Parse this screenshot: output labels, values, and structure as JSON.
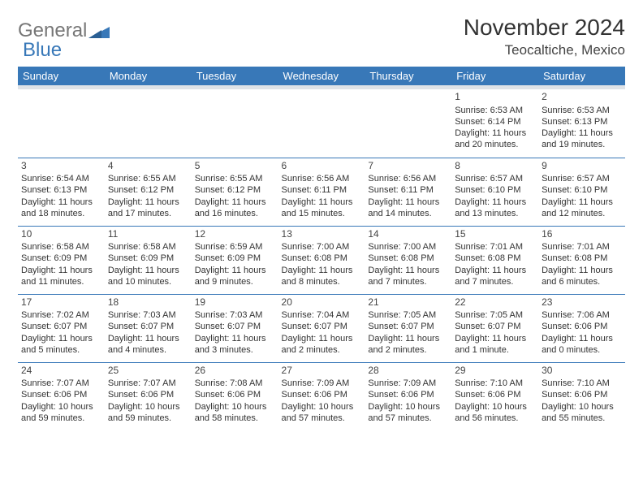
{
  "brand": {
    "part1": "General",
    "part2": "Blue"
  },
  "title": "November 2024",
  "location": "Teocaltiche, Mexico",
  "colors": {
    "header_bg": "#3878b8",
    "header_fg": "#ffffff",
    "rule": "#3878b8",
    "seprow": "#dfe3e7"
  },
  "weekdays": [
    "Sunday",
    "Monday",
    "Tuesday",
    "Wednesday",
    "Thursday",
    "Friday",
    "Saturday"
  ],
  "weeks": [
    [
      null,
      null,
      null,
      null,
      null,
      {
        "n": "1",
        "sr": "Sunrise: 6:53 AM",
        "ss": "Sunset: 6:14 PM",
        "d1": "Daylight: 11 hours",
        "d2": "and 20 minutes."
      },
      {
        "n": "2",
        "sr": "Sunrise: 6:53 AM",
        "ss": "Sunset: 6:13 PM",
        "d1": "Daylight: 11 hours",
        "d2": "and 19 minutes."
      }
    ],
    [
      {
        "n": "3",
        "sr": "Sunrise: 6:54 AM",
        "ss": "Sunset: 6:13 PM",
        "d1": "Daylight: 11 hours",
        "d2": "and 18 minutes."
      },
      {
        "n": "4",
        "sr": "Sunrise: 6:55 AM",
        "ss": "Sunset: 6:12 PM",
        "d1": "Daylight: 11 hours",
        "d2": "and 17 minutes."
      },
      {
        "n": "5",
        "sr": "Sunrise: 6:55 AM",
        "ss": "Sunset: 6:12 PM",
        "d1": "Daylight: 11 hours",
        "d2": "and 16 minutes."
      },
      {
        "n": "6",
        "sr": "Sunrise: 6:56 AM",
        "ss": "Sunset: 6:11 PM",
        "d1": "Daylight: 11 hours",
        "d2": "and 15 minutes."
      },
      {
        "n": "7",
        "sr": "Sunrise: 6:56 AM",
        "ss": "Sunset: 6:11 PM",
        "d1": "Daylight: 11 hours",
        "d2": "and 14 minutes."
      },
      {
        "n": "8",
        "sr": "Sunrise: 6:57 AM",
        "ss": "Sunset: 6:10 PM",
        "d1": "Daylight: 11 hours",
        "d2": "and 13 minutes."
      },
      {
        "n": "9",
        "sr": "Sunrise: 6:57 AM",
        "ss": "Sunset: 6:10 PM",
        "d1": "Daylight: 11 hours",
        "d2": "and 12 minutes."
      }
    ],
    [
      {
        "n": "10",
        "sr": "Sunrise: 6:58 AM",
        "ss": "Sunset: 6:09 PM",
        "d1": "Daylight: 11 hours",
        "d2": "and 11 minutes."
      },
      {
        "n": "11",
        "sr": "Sunrise: 6:58 AM",
        "ss": "Sunset: 6:09 PM",
        "d1": "Daylight: 11 hours",
        "d2": "and 10 minutes."
      },
      {
        "n": "12",
        "sr": "Sunrise: 6:59 AM",
        "ss": "Sunset: 6:09 PM",
        "d1": "Daylight: 11 hours",
        "d2": "and 9 minutes."
      },
      {
        "n": "13",
        "sr": "Sunrise: 7:00 AM",
        "ss": "Sunset: 6:08 PM",
        "d1": "Daylight: 11 hours",
        "d2": "and 8 minutes."
      },
      {
        "n": "14",
        "sr": "Sunrise: 7:00 AM",
        "ss": "Sunset: 6:08 PM",
        "d1": "Daylight: 11 hours",
        "d2": "and 7 minutes."
      },
      {
        "n": "15",
        "sr": "Sunrise: 7:01 AM",
        "ss": "Sunset: 6:08 PM",
        "d1": "Daylight: 11 hours",
        "d2": "and 7 minutes."
      },
      {
        "n": "16",
        "sr": "Sunrise: 7:01 AM",
        "ss": "Sunset: 6:08 PM",
        "d1": "Daylight: 11 hours",
        "d2": "and 6 minutes."
      }
    ],
    [
      {
        "n": "17",
        "sr": "Sunrise: 7:02 AM",
        "ss": "Sunset: 6:07 PM",
        "d1": "Daylight: 11 hours",
        "d2": "and 5 minutes."
      },
      {
        "n": "18",
        "sr": "Sunrise: 7:03 AM",
        "ss": "Sunset: 6:07 PM",
        "d1": "Daylight: 11 hours",
        "d2": "and 4 minutes."
      },
      {
        "n": "19",
        "sr": "Sunrise: 7:03 AM",
        "ss": "Sunset: 6:07 PM",
        "d1": "Daylight: 11 hours",
        "d2": "and 3 minutes."
      },
      {
        "n": "20",
        "sr": "Sunrise: 7:04 AM",
        "ss": "Sunset: 6:07 PM",
        "d1": "Daylight: 11 hours",
        "d2": "and 2 minutes."
      },
      {
        "n": "21",
        "sr": "Sunrise: 7:05 AM",
        "ss": "Sunset: 6:07 PM",
        "d1": "Daylight: 11 hours",
        "d2": "and 2 minutes."
      },
      {
        "n": "22",
        "sr": "Sunrise: 7:05 AM",
        "ss": "Sunset: 6:07 PM",
        "d1": "Daylight: 11 hours",
        "d2": "and 1 minute."
      },
      {
        "n": "23",
        "sr": "Sunrise: 7:06 AM",
        "ss": "Sunset: 6:06 PM",
        "d1": "Daylight: 11 hours",
        "d2": "and 0 minutes."
      }
    ],
    [
      {
        "n": "24",
        "sr": "Sunrise: 7:07 AM",
        "ss": "Sunset: 6:06 PM",
        "d1": "Daylight: 10 hours",
        "d2": "and 59 minutes."
      },
      {
        "n": "25",
        "sr": "Sunrise: 7:07 AM",
        "ss": "Sunset: 6:06 PM",
        "d1": "Daylight: 10 hours",
        "d2": "and 59 minutes."
      },
      {
        "n": "26",
        "sr": "Sunrise: 7:08 AM",
        "ss": "Sunset: 6:06 PM",
        "d1": "Daylight: 10 hours",
        "d2": "and 58 minutes."
      },
      {
        "n": "27",
        "sr": "Sunrise: 7:09 AM",
        "ss": "Sunset: 6:06 PM",
        "d1": "Daylight: 10 hours",
        "d2": "and 57 minutes."
      },
      {
        "n": "28",
        "sr": "Sunrise: 7:09 AM",
        "ss": "Sunset: 6:06 PM",
        "d1": "Daylight: 10 hours",
        "d2": "and 57 minutes."
      },
      {
        "n": "29",
        "sr": "Sunrise: 7:10 AM",
        "ss": "Sunset: 6:06 PM",
        "d1": "Daylight: 10 hours",
        "d2": "and 56 minutes."
      },
      {
        "n": "30",
        "sr": "Sunrise: 7:10 AM",
        "ss": "Sunset: 6:06 PM",
        "d1": "Daylight: 10 hours",
        "d2": "and 55 minutes."
      }
    ]
  ]
}
